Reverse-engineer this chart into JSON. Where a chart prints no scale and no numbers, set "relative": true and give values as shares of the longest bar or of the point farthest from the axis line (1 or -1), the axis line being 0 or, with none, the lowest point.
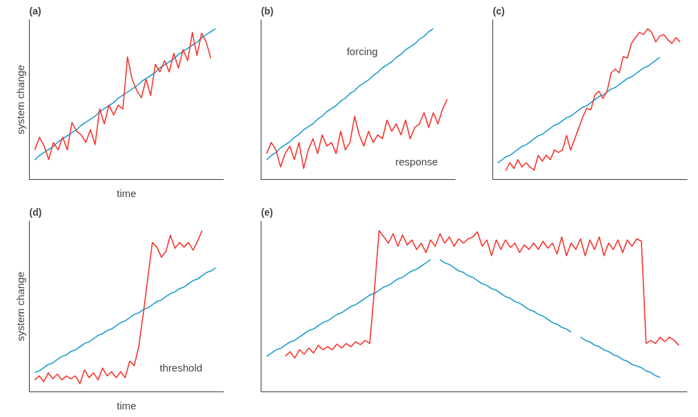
{
  "chart_data": [
    {
      "type": "line",
      "title": "(a)",
      "xlabel": "time",
      "ylabel": "system change",
      "relative": true,
      "categories": [
        null,
        null,
        null,
        null,
        null,
        null,
        null,
        null,
        null,
        null,
        null,
        null,
        null,
        null,
        null,
        null,
        null,
        null,
        null,
        null,
        null,
        null,
        null,
        null,
        null,
        null,
        null,
        null,
        null,
        null,
        null,
        null,
        null,
        null,
        null,
        null,
        null,
        null,
        null,
        null
      ],
      "series": [
        {
          "color": "#1a9bd0",
          "values": [
            0.13,
            0.16,
            0.18,
            0.2,
            0.22,
            0.25,
            0.27,
            0.29,
            0.31,
            0.33,
            0.36,
            0.38,
            0.4,
            0.42,
            0.45,
            0.47,
            0.49,
            0.51,
            0.54,
            0.56,
            0.58,
            0.6,
            0.62,
            0.65,
            0.67,
            0.69,
            0.71,
            0.74,
            0.76,
            0.78,
            0.8,
            0.83,
            0.85,
            0.87,
            0.89,
            0.91,
            0.94,
            0.96,
            0.98,
            1.0
          ]
        },
        {
          "color": "#f5332a",
          "values": [
            0.197,
            0.281,
            0.222,
            0.133,
            0.246,
            0.197,
            0.281,
            0.197,
            0.379,
            0.32,
            0.296,
            0.246,
            0.33,
            0.232,
            0.468,
            0.369,
            0.493,
            0.429,
            0.493,
            0.468,
            0.813,
            0.665,
            0.591,
            0.542,
            0.665,
            0.557,
            0.764,
            0.714,
            0.788,
            0.714,
            0.837,
            0.739,
            0.862,
            0.788,
            0.975,
            0.823,
            0.97,
            0.911,
            0.803,
            null
          ]
        }
      ]
    },
    {
      "type": "line",
      "title": "(b)",
      "relative": true,
      "annotations": [
        "forcing",
        "response"
      ],
      "categories": [
        null,
        null,
        null,
        null,
        null,
        null,
        null,
        null,
        null,
        null,
        null,
        null,
        null,
        null,
        null,
        null,
        null,
        null,
        null,
        null,
        null,
        null,
        null,
        null,
        null,
        null,
        null,
        null,
        null,
        null,
        null,
        null,
        null,
        null,
        null,
        null,
        null,
        null,
        null,
        null
      ],
      "series": [
        {
          "color": "#1a9bd0",
          "values": [
            0.13,
            0.16,
            0.18,
            0.21,
            0.23,
            0.25,
            0.28,
            0.3,
            0.33,
            0.35,
            0.37,
            0.4,
            0.42,
            0.45,
            0.47,
            0.49,
            0.52,
            0.54,
            0.57,
            0.59,
            0.62,
            0.64,
            0.66,
            0.69,
            0.71,
            0.74,
            0.76,
            0.78,
            0.81,
            0.83,
            0.86,
            0.88,
            0.9,
            0.93,
            0.95,
            0.98,
            1.0,
            null,
            null,
            null
          ]
        },
        {
          "color": "#f5332a",
          "values": [
            0.172,
            0.246,
            0.197,
            0.084,
            0.172,
            0.222,
            0.133,
            0.246,
            0.074,
            0.197,
            0.271,
            0.172,
            0.296,
            0.222,
            0.246,
            0.172,
            0.32,
            0.197,
            0.246,
            0.419,
            0.296,
            0.222,
            0.32,
            0.246,
            0.296,
            0.271,
            0.394,
            0.32,
            0.369,
            0.296,
            0.394,
            0.271,
            0.345,
            0.369,
            0.443,
            0.345,
            0.443,
            0.369,
            0.468,
            0.532
          ]
        }
      ]
    },
    {
      "type": "line",
      "title": "(c)",
      "relative": true,
      "categories": [
        null,
        null,
        null,
        null,
        null,
        null,
        null,
        null,
        null,
        null,
        null,
        null,
        null,
        null,
        null,
        null,
        null,
        null,
        null,
        null,
        null,
        null,
        null,
        null,
        null,
        null,
        null,
        null,
        null,
        null,
        null,
        null,
        null,
        null,
        null,
        null,
        null,
        null,
        null,
        null,
        null,
        null,
        null,
        null,
        null,
        null
      ],
      "series": [
        {
          "color": "#1a9bd0",
          "values": [
            0.11,
            0.13,
            0.15,
            0.16,
            0.18,
            0.2,
            0.22,
            0.23,
            0.25,
            0.27,
            0.29,
            0.3,
            0.32,
            0.34,
            0.36,
            0.37,
            0.39,
            0.41,
            0.42,
            0.44,
            0.46,
            0.48,
            0.49,
            0.51,
            0.53,
            0.55,
            0.56,
            0.58,
            0.6,
            0.61,
            0.63,
            0.65,
            0.67,
            0.68,
            0.7,
            0.72,
            0.74,
            0.75,
            0.77,
            0.79,
            0.81,
            null,
            null,
            null,
            null,
            null
          ]
        },
        {
          "color": "#f5332a",
          "values": [
            null,
            null,
            0.059,
            0.112,
            0.073,
            0.132,
            0.083,
            0.112,
            0.083,
            0.063,
            0.161,
            0.122,
            0.161,
            0.132,
            0.195,
            0.18,
            0.195,
            0.293,
            0.195,
            0.268,
            0.341,
            0.415,
            0.473,
            0.463,
            0.561,
            0.585,
            0.537,
            0.585,
            0.707,
            0.732,
            0.707,
            0.815,
            0.805,
            0.902,
            0.941,
            0.976,
            0.961,
            1.0,
            0.976,
            0.912,
            0.951,
            0.961,
            0.927,
            0.902,
            0.941,
            0.912
          ]
        }
      ]
    },
    {
      "type": "line",
      "title": "(d)",
      "xlabel": "time",
      "ylabel": "system change",
      "relative": true,
      "annotations": [
        "threshold"
      ],
      "categories": [
        null,
        null,
        null,
        null,
        null,
        null,
        null,
        null,
        null,
        null,
        null,
        null,
        null,
        null,
        null,
        null,
        null,
        null,
        null,
        null,
        null,
        null,
        null,
        null,
        null,
        null,
        null,
        null,
        null,
        null,
        null,
        null,
        null,
        null,
        null,
        null,
        null,
        null,
        null,
        null,
        null
      ],
      "series": [
        {
          "color": "#1a9bd0",
          "values": [
            0.12,
            0.13,
            0.15,
            0.17,
            0.18,
            0.2,
            0.22,
            0.23,
            0.25,
            0.26,
            0.28,
            0.3,
            0.31,
            0.33,
            0.35,
            0.36,
            0.38,
            0.39,
            0.41,
            0.43,
            0.44,
            0.46,
            0.48,
            0.49,
            0.51,
            0.52,
            0.54,
            0.56,
            0.57,
            0.59,
            0.61,
            0.62,
            0.64,
            0.65,
            0.67,
            0.69,
            0.7,
            0.72,
            0.74,
            0.75,
            0.77
          ]
        },
        {
          "color": "#f5332a",
          "values": [
            0.074,
            0.099,
            0.063,
            0.118,
            0.081,
            0.11,
            0.074,
            0.099,
            0.081,
            0.099,
            0.051,
            0.136,
            0.088,
            0.118,
            0.074,
            0.147,
            0.099,
            0.125,
            0.088,
            0.125,
            0.088,
            0.191,
            0.162,
            0.283,
            0.485,
            0.706,
            0.926,
            0.897,
            0.835,
            0.871,
            0.971,
            0.89,
            0.926,
            0.897,
            0.926,
            0.879,
            0.934,
            1.0,
            null,
            null,
            null
          ]
        }
      ]
    },
    {
      "type": "line",
      "title": "(e)",
      "relative": true,
      "categories": [
        null,
        null,
        null,
        null,
        null,
        null,
        null,
        null,
        null,
        null,
        null,
        null,
        null,
        null,
        null,
        null,
        null,
        null,
        null,
        null,
        null,
        null,
        null,
        null,
        null,
        null,
        null,
        null,
        null,
        null,
        null,
        null,
        null,
        null,
        null,
        null,
        null,
        null,
        null,
        null,
        null,
        null,
        null,
        null,
        null,
        null,
        null,
        null,
        null,
        null,
        null,
        null,
        null,
        null,
        null,
        null,
        null,
        null,
        null,
        null,
        null,
        null,
        null,
        null,
        null,
        null,
        null,
        null,
        null,
        null,
        null,
        null,
        null,
        null,
        null,
        null,
        null,
        null,
        null,
        null,
        null,
        null,
        null,
        null,
        null,
        null,
        null,
        null,
        null
      ],
      "series": [
        {
          "color": "#1a9bd0",
          "values": [
            0.22,
            0.24,
            0.26,
            0.27,
            0.29,
            0.31,
            0.32,
            0.34,
            0.36,
            0.38,
            0.39,
            0.41,
            0.43,
            0.44,
            0.46,
            0.48,
            0.49,
            0.51,
            0.53,
            0.54,
            0.56,
            0.58,
            0.6,
            0.61,
            0.63,
            0.65,
            0.66,
            0.68,
            0.7,
            0.71,
            0.73,
            0.75,
            0.76,
            0.78,
            0.8,
            0.82,
            null,
            0.82,
            0.8,
            0.79,
            0.77,
            0.75,
            0.74,
            0.72,
            0.71,
            0.69,
            0.67,
            0.66,
            0.64,
            0.63,
            0.61,
            0.59,
            0.58,
            0.56,
            0.55,
            0.53,
            0.51,
            0.5,
            0.48,
            0.47,
            0.45,
            0.43,
            0.42,
            0.4,
            0.39,
            0.37,
            null,
            0.34,
            0.32,
            0.31,
            0.29,
            0.28,
            0.26,
            0.25,
            0.23,
            0.22,
            0.2,
            0.19,
            0.17,
            0.16,
            0.15,
            0.13,
            0.12,
            0.1,
            0.09,
            null,
            null,
            null,
            null
          ]
        },
        {
          "color": "#f5332a",
          "values": [
            null,
            null,
            null,
            null,
            0.222,
            0.249,
            0.21,
            0.261,
            0.233,
            0.272,
            0.241,
            0.288,
            0.261,
            0.28,
            0.261,
            0.296,
            0.272,
            0.3,
            0.28,
            0.311,
            0.292,
            0.319,
            0.3,
            0.63,
            1.0,
            0.961,
            0.922,
            0.981,
            0.903,
            0.973,
            0.911,
            0.942,
            0.883,
            0.922,
            0.864,
            0.942,
            0.903,
            0.981,
            0.922,
            0.961,
            0.903,
            0.949,
            0.922,
            0.949,
            0.961,
            0.992,
            0.903,
            0.942,
            0.844,
            0.942,
            0.883,
            0.942,
            0.895,
            0.922,
            0.864,
            0.911,
            0.883,
            0.922,
            0.883,
            0.934,
            0.891,
            0.922,
            0.856,
            0.961,
            0.844,
            0.922,
            0.883,
            0.949,
            0.844,
            0.942,
            0.883,
            0.961,
            0.844,
            0.922,
            0.883,
            0.942,
            0.864,
            0.942,
            0.903,
            0.949,
            0.934,
            0.3,
            0.319,
            0.3,
            0.339,
            0.311,
            0.339,
            0.319,
            0.288
          ]
        }
      ]
    }
  ]
}
